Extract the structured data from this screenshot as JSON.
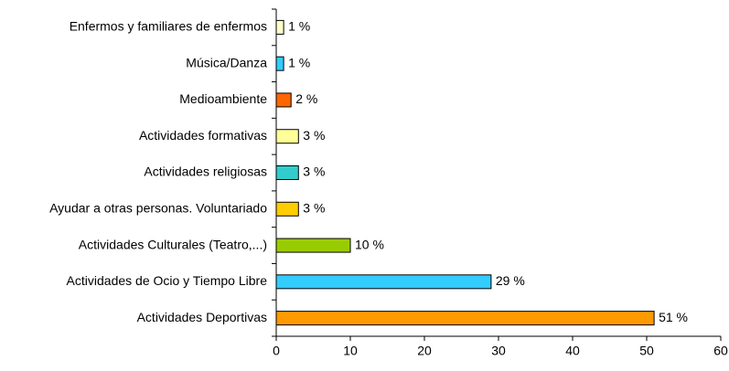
{
  "chart_data": {
    "type": "hbar",
    "categories": [
      "Enfermos y familiares de enfermos",
      "Música/Danza",
      "Medioambiente",
      "Actividades formativas",
      "Actividades religiosas",
      "Ayudar a otras personas. Voluntariado",
      "Actividades Culturales (Teatro,...)",
      "Actividades de Ocio y Tiempo Libre",
      "Actividades Deportivas"
    ],
    "values": [
      1,
      1,
      2,
      3,
      3,
      3,
      10,
      29,
      51
    ],
    "value_labels": [
      "1 %",
      "1 %",
      "2 %",
      "3 %",
      "3 %",
      "3 %",
      "10 %",
      "29 %",
      "51 %"
    ],
    "colors": [
      "#ffffcc",
      "#33ccff",
      "#ff6600",
      "#ffff99",
      "#33cccc",
      "#ffcc00",
      "#99cc00",
      "#33ccff",
      "#ff9900"
    ],
    "xlim": [
      0,
      60
    ],
    "xticks": [
      0,
      10,
      20,
      30,
      40,
      50,
      60
    ]
  }
}
